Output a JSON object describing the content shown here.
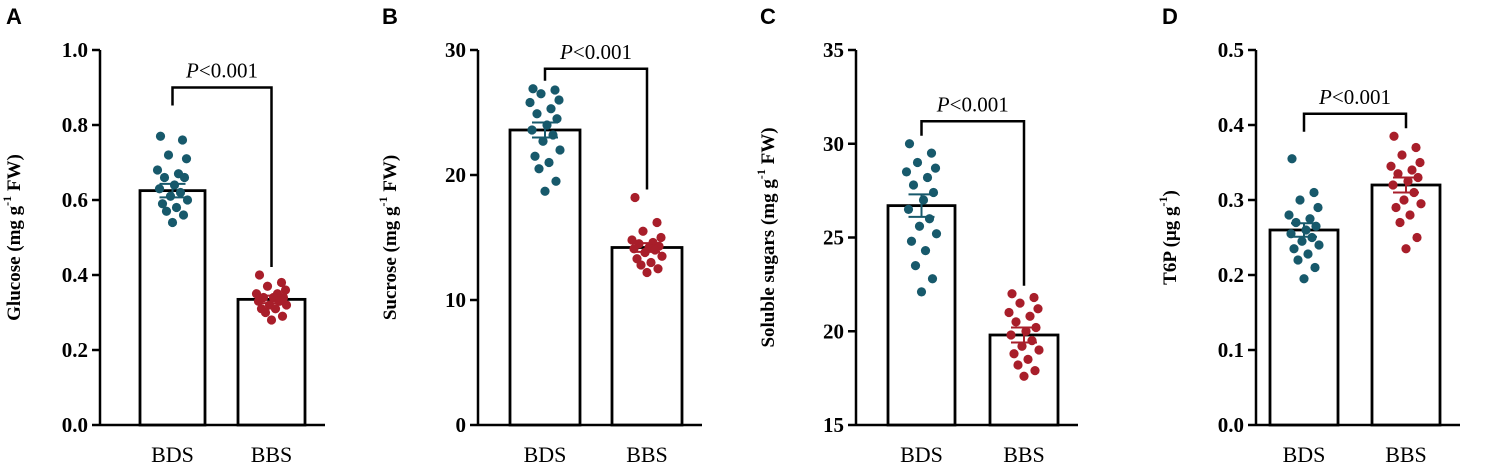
{
  "figure": {
    "width": 1485,
    "height": 471
  },
  "colors": {
    "bds": "#17596b",
    "bbs": "#a81e2a",
    "axis": "#000000",
    "bar_fill": "#ffffff"
  },
  "chart_data": [
    {
      "type": "bar",
      "panel": "A",
      "title": "",
      "ylabel_main": "Glucose (mg g",
      "ylabel_sup": "-1",
      "ylabel_tail": " FW)",
      "xlabel": "",
      "ylim": [
        0.0,
        1.0
      ],
      "yticks": [
        0.0,
        0.2,
        0.4,
        0.6,
        0.8,
        1.0
      ],
      "ytick_labels": [
        "0.0",
        "0.2",
        "0.4",
        "0.6",
        "0.8",
        "1.0"
      ],
      "categories": [
        "BDS",
        "BBS"
      ],
      "values": [
        0.625,
        0.335
      ],
      "errors": [
        0.018,
        0.01
      ],
      "points": [
        [
          0.77,
          0.76,
          0.72,
          0.71,
          0.68,
          0.67,
          0.66,
          0.66,
          0.64,
          0.63,
          0.62,
          0.61,
          0.6,
          0.59,
          0.58,
          0.57,
          0.56,
          0.54
        ],
        [
          0.4,
          0.38,
          0.37,
          0.36,
          0.35,
          0.35,
          0.34,
          0.34,
          0.34,
          0.33,
          0.33,
          0.32,
          0.32,
          0.31,
          0.31,
          0.3,
          0.29,
          0.28
        ]
      ],
      "significance": "P<0.001",
      "sig_level": 0.9
    },
    {
      "type": "bar",
      "panel": "B",
      "title": "",
      "ylabel_main": "Sucrose (mg g",
      "ylabel_sup": "-1",
      "ylabel_tail": " FW)",
      "xlabel": "",
      "ylim": [
        0,
        30
      ],
      "yticks": [
        0,
        10,
        20,
        30
      ],
      "ytick_labels": [
        "0",
        "10",
        "20",
        "30"
      ],
      "categories": [
        "BDS",
        "BBS"
      ],
      "values": [
        23.6,
        14.2
      ],
      "errors": [
        0.6,
        0.35
      ],
      "points": [
        [
          26.9,
          26.8,
          26.5,
          26.0,
          25.8,
          25.3,
          24.9,
          24.5,
          24.0,
          23.6,
          23.2,
          22.7,
          22.0,
          21.5,
          21.0,
          20.5,
          19.5,
          18.7
        ],
        [
          18.2,
          16.2,
          15.5,
          15.0,
          14.8,
          14.6,
          14.5,
          14.3,
          14.2,
          14.1,
          14.0,
          13.8,
          13.5,
          13.3,
          13.0,
          12.8,
          12.5,
          12.2
        ]
      ],
      "significance": "P<0.001",
      "sig_level": 28.5
    },
    {
      "type": "bar",
      "panel": "C",
      "title": "",
      "ylabel_main": "Soluble sugars (mg g",
      "ylabel_sup": "-1",
      "ylabel_tail": " FW)",
      "xlabel": "",
      "ylim": [
        15,
        35
      ],
      "yticks": [
        15,
        20,
        25,
        30,
        35
      ],
      "ytick_labels": [
        "15",
        "20",
        "25",
        "30",
        "35"
      ],
      "categories": [
        "BDS",
        "BBS"
      ],
      "values": [
        26.7,
        19.8
      ],
      "errors": [
        0.6,
        0.4
      ],
      "points": [
        [
          30.0,
          29.5,
          29.0,
          28.7,
          28.5,
          28.2,
          27.8,
          27.4,
          27.0,
          26.5,
          26.0,
          25.6,
          25.2,
          24.8,
          24.3,
          23.5,
          22.8,
          22.1
        ],
        [
          22.0,
          21.8,
          21.5,
          21.2,
          21.0,
          20.8,
          20.5,
          20.2,
          20.0,
          19.8,
          19.5,
          19.2,
          19.0,
          18.8,
          18.5,
          18.2,
          17.9,
          17.6
        ]
      ],
      "significance": "P<0.001",
      "sig_level": 31.2
    },
    {
      "type": "bar",
      "panel": "D",
      "title": "",
      "ylabel_main": "T6P (μg g",
      "ylabel_sup": "-1",
      "ylabel_tail": ")",
      "xlabel": "",
      "ylim": [
        0.0,
        0.5
      ],
      "yticks": [
        0.0,
        0.1,
        0.2,
        0.3,
        0.4,
        0.5
      ],
      "ytick_labels": [
        "0.0",
        "0.1",
        "0.2",
        "0.3",
        "0.4",
        "0.5"
      ],
      "categories": [
        "BDS",
        "BBS"
      ],
      "values": [
        0.26,
        0.32
      ],
      "errors": [
        0.009,
        0.01
      ],
      "points": [
        [
          0.355,
          0.31,
          0.3,
          0.29,
          0.28,
          0.275,
          0.27,
          0.265,
          0.26,
          0.255,
          0.25,
          0.245,
          0.24,
          0.235,
          0.228,
          0.22,
          0.21,
          0.195
        ],
        [
          0.385,
          0.37,
          0.36,
          0.35,
          0.345,
          0.34,
          0.335,
          0.33,
          0.325,
          0.32,
          0.31,
          0.3,
          0.295,
          0.29,
          0.28,
          0.27,
          0.25,
          0.235
        ]
      ],
      "significance": "P<0.001",
      "sig_level": 0.415
    }
  ]
}
